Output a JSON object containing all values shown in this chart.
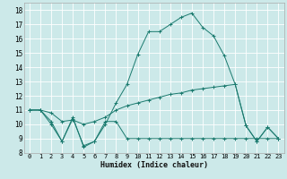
{
  "xlabel": "Humidex (Indice chaleur)",
  "xlim": [
    -0.5,
    23.5
  ],
  "ylim": [
    8,
    18.5
  ],
  "xticks": [
    0,
    1,
    2,
    3,
    4,
    5,
    6,
    7,
    8,
    9,
    10,
    11,
    12,
    13,
    14,
    15,
    16,
    17,
    18,
    19,
    20,
    21,
    22,
    23
  ],
  "yticks": [
    8,
    9,
    10,
    11,
    12,
    13,
    14,
    15,
    16,
    17,
    18
  ],
  "background_color": "#cce9e9",
  "grid_color": "#ffffff",
  "line_color": "#1a7a6e",
  "line1_x": [
    0,
    1,
    2,
    3,
    4,
    5,
    6,
    7,
    8,
    9,
    10,
    11,
    12,
    13,
    14,
    15,
    16,
    17,
    18,
    19,
    20,
    21,
    22,
    23
  ],
  "line1_y": [
    11,
    11,
    10,
    8.8,
    10.4,
    8.5,
    8.8,
    10,
    11.5,
    12.8,
    14.9,
    16.5,
    16.5,
    17.0,
    17.5,
    17.8,
    16.8,
    16.2,
    14.8,
    12.8,
    9.9,
    8.8,
    9.8,
    9.0
  ],
  "line2_x": [
    0,
    1,
    2,
    3,
    4,
    5,
    6,
    7,
    8,
    9,
    10,
    11,
    12,
    13,
    14,
    15,
    16,
    17,
    18,
    19,
    20,
    21,
    22,
    23
  ],
  "line2_y": [
    11,
    11,
    10.2,
    8.8,
    10.5,
    8.4,
    8.8,
    10.2,
    10.2,
    9.0,
    9.0,
    9.0,
    9.0,
    9.0,
    9.0,
    9.0,
    9.0,
    9.0,
    9.0,
    9.0,
    9.0,
    9.0,
    9.0,
    9.0
  ],
  "line3_x": [
    0,
    1,
    2,
    3,
    4,
    5,
    6,
    7,
    8,
    9,
    10,
    11,
    12,
    13,
    14,
    15,
    16,
    17,
    18,
    19,
    20,
    21,
    22,
    23
  ],
  "line3_y": [
    11.0,
    11.0,
    10.8,
    10.2,
    10.3,
    10.0,
    10.2,
    10.5,
    11.0,
    11.3,
    11.5,
    11.7,
    11.9,
    12.1,
    12.2,
    12.4,
    12.5,
    12.6,
    12.7,
    12.8,
    9.9,
    8.8,
    9.8,
    9.0
  ],
  "xlabel_fontsize": 6,
  "tick_fontsize": 5,
  "linewidth": 0.7,
  "markersize": 3
}
